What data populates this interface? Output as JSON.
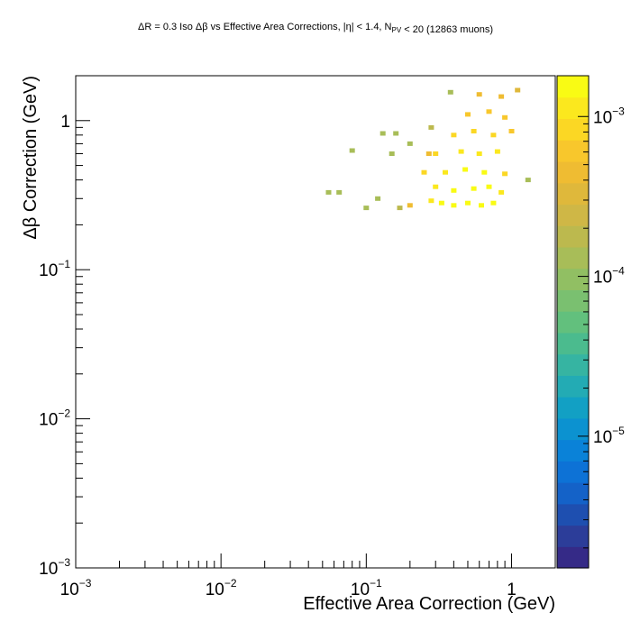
{
  "chart_data": {
    "type": "heatmap",
    "title": {
      "segments": [
        {
          "text": "ΔR = 0.3 Iso Δβ vs Effective Area Corrections, |η| < 1.4, N"
        },
        {
          "text": "PV",
          "sub": true
        },
        {
          "text": " < 20 (12863 muons)"
        }
      ]
    },
    "xlabel": "Effective Area Correction (GeV)",
    "ylabel": "Δβ Correction (GeV)",
    "x_scale": "log",
    "y_scale": "log",
    "z_scale": "log",
    "xlim": [
      0.001,
      2
    ],
    "ylim": [
      0.001,
      2
    ],
    "zlim": [
      1.5e-06,
      0.0018
    ],
    "x_ticks": [
      {
        "value": 0.001,
        "base": "10",
        "exp": "−3"
      },
      {
        "value": 0.01,
        "base": "10",
        "exp": "−2"
      },
      {
        "value": 0.1,
        "base": "10",
        "exp": "−1"
      },
      {
        "value": 1,
        "base": "1",
        "exp": ""
      }
    ],
    "y_ticks": [
      {
        "value": 0.001,
        "base": "10",
        "exp": "−3"
      },
      {
        "value": 0.01,
        "base": "10",
        "exp": "−2"
      },
      {
        "value": 0.1,
        "base": "10",
        "exp": "−1"
      },
      {
        "value": 1,
        "base": "1",
        "exp": ""
      }
    ],
    "z_ticks": [
      {
        "value": 1e-05,
        "base": "10",
        "exp": "−5"
      },
      {
        "value": 0.0001,
        "base": "10",
        "exp": "−4"
      },
      {
        "value": 0.001,
        "base": "10",
        "exp": "−3"
      }
    ],
    "colormap": [
      "#352a87",
      "#2c3d99",
      "#1e4fb0",
      "#1462c8",
      "#0d72d6",
      "#0a82d8",
      "#0c92d0",
      "#12a0c4",
      "#23abb4",
      "#36b4a2",
      "#4bbb8e",
      "#62c07d",
      "#7ac070",
      "#91bf63",
      "#a8bd58",
      "#bcb94e",
      "#cfb746",
      "#dfb83b",
      "#efbc32",
      "#f8c72c",
      "#fbd724",
      "#fbe81e",
      "#f9fb14"
    ],
    "cells": [
      [
        0.28,
        0.29,
        0.001
      ],
      [
        0.33,
        0.28,
        0.0015
      ],
      [
        0.4,
        0.27,
        0.0016
      ],
      [
        0.5,
        0.28,
        0.0017
      ],
      [
        0.62,
        0.27,
        0.0018
      ],
      [
        0.75,
        0.28,
        0.0014
      ],
      [
        0.3,
        0.36,
        0.0012
      ],
      [
        0.4,
        0.34,
        0.0016
      ],
      [
        0.55,
        0.35,
        0.0017
      ],
      [
        0.7,
        0.36,
        0.0015
      ],
      [
        0.85,
        0.33,
        0.0011
      ],
      [
        0.25,
        0.45,
        0.0009
      ],
      [
        0.35,
        0.45,
        0.0013
      ],
      [
        0.48,
        0.47,
        0.0015
      ],
      [
        0.65,
        0.45,
        0.0014
      ],
      [
        0.9,
        0.44,
        0.0008
      ],
      [
        0.3,
        0.6,
        0.0008
      ],
      [
        0.45,
        0.62,
        0.0011
      ],
      [
        0.6,
        0.6,
        0.0012
      ],
      [
        0.8,
        0.62,
        0.001
      ],
      [
        0.4,
        0.8,
        0.0008
      ],
      [
        0.55,
        0.85,
        0.0009
      ],
      [
        0.75,
        0.8,
        0.0009
      ],
      [
        1.0,
        0.85,
        0.0006
      ],
      [
        0.5,
        1.1,
        0.0006
      ],
      [
        0.7,
        1.15,
        0.0007
      ],
      [
        0.9,
        1.05,
        0.0006
      ],
      [
        0.6,
        1.5,
        0.0004
      ],
      [
        0.85,
        1.45,
        0.0005
      ],
      [
        1.1,
        1.6,
        0.0003
      ],
      [
        0.2,
        0.27,
        0.0005
      ],
      [
        0.17,
        0.26,
        0.0002
      ],
      [
        0.1,
        0.26,
        0.00012
      ],
      [
        0.12,
        0.3,
        0.00012
      ],
      [
        0.055,
        0.33,
        0.00012
      ],
      [
        0.065,
        0.33,
        0.00012
      ],
      [
        0.08,
        0.63,
        0.00012
      ],
      [
        0.15,
        0.6,
        0.00012
      ],
      [
        0.2,
        0.7,
        0.00012
      ],
      [
        0.13,
        0.82,
        0.00012
      ],
      [
        0.16,
        0.82,
        0.00012
      ],
      [
        0.28,
        0.9,
        0.0002
      ],
      [
        0.38,
        1.55,
        0.00015
      ],
      [
        0.27,
        0.6,
        0.0004
      ],
      [
        1.3,
        0.4,
        0.00012
      ]
    ]
  }
}
